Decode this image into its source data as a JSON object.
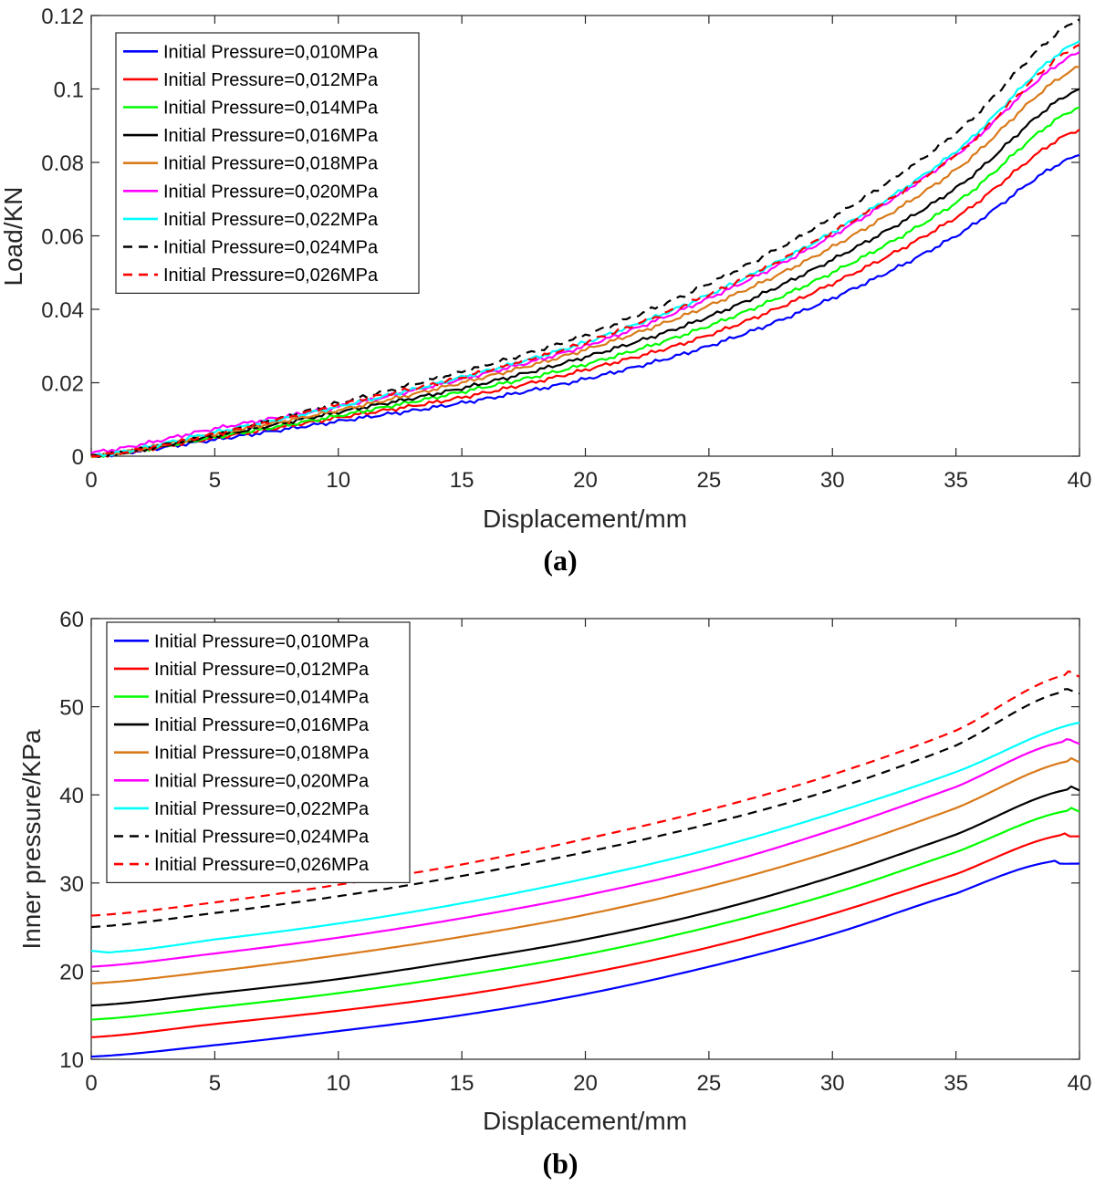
{
  "chart_data": [
    {
      "panel_label": "(a)",
      "type": "line",
      "xlabel": "Displacement/mm",
      "ylabel": "Load/KN",
      "xlim": [
        0,
        40
      ],
      "ylim": [
        0,
        0.12
      ],
      "xticks": [
        "0",
        "5",
        "10",
        "15",
        "20",
        "25",
        "30",
        "35",
        "40"
      ],
      "xtick_values": [
        0,
        5,
        10,
        15,
        20,
        25,
        30,
        35,
        40
      ],
      "yticks": [
        "0",
        "0.02",
        "0.04",
        "0.06",
        "0.08",
        "0.1",
        "0.12"
      ],
      "ytick_values": [
        0,
        0.02,
        0.04,
        0.06,
        0.08,
        0.1,
        0.12
      ],
      "legend_position": "top-left",
      "x": [
        0,
        5,
        10,
        15,
        20,
        25,
        30,
        35,
        40
      ],
      "series": [
        {
          "name": "Initial Pressure=0,010MPa",
          "color": "#0000ff",
          "dash": "solid",
          "values": [
            0.0,
            0.0045,
            0.0095,
            0.0145,
            0.021,
            0.03,
            0.043,
            0.06,
            0.082
          ]
        },
        {
          "name": "Initial Pressure=0,012MPa",
          "color": "#ff0000",
          "dash": "solid",
          "values": [
            0.0,
            0.005,
            0.0105,
            0.016,
            0.0235,
            0.033,
            0.047,
            0.065,
            0.089
          ]
        },
        {
          "name": "Initial Pressure=0,014MPa",
          "color": "#00ff00",
          "dash": "solid",
          "values": [
            0.0,
            0.0052,
            0.011,
            0.0175,
            0.025,
            0.0355,
            0.05,
            0.069,
            0.095
          ]
        },
        {
          "name": "Initial Pressure=0,016MPa",
          "color": "#000000",
          "dash": "solid",
          "values": [
            0.0,
            0.0055,
            0.012,
            0.0185,
            0.027,
            0.038,
            0.0535,
            0.073,
            0.1
          ]
        },
        {
          "name": "Initial Pressure=0,018MPa",
          "color": "#d97a1a",
          "dash": "solid",
          "values": [
            0.0,
            0.006,
            0.0125,
            0.02,
            0.029,
            0.041,
            0.057,
            0.078,
            0.106
          ]
        },
        {
          "name": "Initial Pressure=0,020MPa",
          "color": "#ff00ff",
          "dash": "solid",
          "values": [
            0.001,
            0.0075,
            0.0135,
            0.021,
            0.03,
            0.043,
            0.06,
            0.082,
            0.11
          ]
        },
        {
          "name": "Initial Pressure=0,022MPa",
          "color": "#00ffff",
          "dash": "solid",
          "values": [
            0.0,
            0.0065,
            0.0135,
            0.0215,
            0.031,
            0.044,
            0.061,
            0.083,
            0.113
          ]
        },
        {
          "name": "Initial Pressure=0,024MPa",
          "color": "#000000",
          "dash": "dashed",
          "values": [
            0.0,
            0.006,
            0.0145,
            0.023,
            0.033,
            0.047,
            0.065,
            0.088,
            0.119
          ]
        },
        {
          "name": "Initial Pressure=0,026MPa",
          "color": "#ff0000",
          "dash": "dashed",
          "values": [
            0.0,
            0.006,
            0.014,
            0.0215,
            0.031,
            0.044,
            0.061,
            0.082,
            0.112
          ]
        }
      ]
    },
    {
      "panel_label": "(b)",
      "type": "line",
      "xlabel": "Displacement/mm",
      "ylabel": "Inner pressure/KPa",
      "xlim": [
        0,
        40
      ],
      "ylim": [
        10,
        60
      ],
      "xticks": [
        "0",
        "5",
        "10",
        "15",
        "20",
        "25",
        "30",
        "35",
        "40"
      ],
      "xtick_values": [
        0,
        5,
        10,
        15,
        20,
        25,
        30,
        35,
        40
      ],
      "yticks": [
        "10",
        "20",
        "30",
        "40",
        "50",
        "60"
      ],
      "ytick_values": [
        10,
        20,
        30,
        40,
        50,
        60
      ],
      "legend_position": "top-left",
      "series": [
        {
          "name": "Initial Pressure=0,010MPa",
          "color": "#0000ff",
          "dash": "solid",
          "x": [
            0,
            5,
            10,
            15,
            20,
            25,
            30,
            35,
            38.8,
            39.2,
            40
          ],
          "values": [
            10.3,
            11.6,
            13.2,
            15.0,
            17.4,
            20.5,
            24.2,
            28.8,
            32.4,
            32.2,
            32.2
          ]
        },
        {
          "name": "Initial Pressure=0,012MPa",
          "color": "#ff0000",
          "dash": "solid",
          "x": [
            0,
            5,
            10,
            15,
            20,
            25,
            30,
            35,
            39.2,
            39.6,
            40
          ],
          "values": [
            12.5,
            14.0,
            15.5,
            17.3,
            19.7,
            22.7,
            26.5,
            31.0,
            35.4,
            35.3,
            35.3
          ]
        },
        {
          "name": "Initial Pressure=0,014MPa",
          "color": "#00ff00",
          "dash": "solid",
          "x": [
            0,
            5,
            10,
            15,
            20,
            25,
            30,
            35,
            39.5,
            40
          ],
          "values": [
            14.5,
            15.9,
            17.5,
            19.5,
            21.9,
            25.0,
            28.8,
            33.5,
            38.2,
            38.1
          ]
        },
        {
          "name": "Initial Pressure=0,016MPa",
          "color": "#000000",
          "dash": "solid",
          "x": [
            0,
            5,
            10,
            15,
            20,
            25,
            30,
            35,
            39.5,
            40
          ],
          "values": [
            16.1,
            17.5,
            19.1,
            21.2,
            23.6,
            26.7,
            30.7,
            35.5,
            40.6,
            40.5
          ]
        },
        {
          "name": "Initial Pressure=0,018MPa",
          "color": "#d97a1a",
          "dash": "solid",
          "x": [
            0,
            5,
            10,
            15,
            20,
            25,
            30,
            35,
            39.5,
            40
          ],
          "values": [
            18.6,
            20.0,
            21.8,
            23.9,
            26.4,
            29.6,
            33.6,
            38.5,
            43.8,
            43.7
          ]
        },
        {
          "name": "Initial Pressure=0,020MPa",
          "color": "#ff00ff",
          "dash": "solid",
          "x": [
            0,
            5,
            10,
            15,
            20,
            25,
            30,
            35,
            39.3,
            40
          ],
          "values": [
            20.5,
            22.0,
            23.8,
            26.0,
            28.6,
            31.8,
            36.0,
            40.9,
            46.0,
            45.8
          ]
        },
        {
          "name": "Initial Pressure=0,022MPa",
          "color": "#00ffff",
          "dash": "solid",
          "x": [
            0,
            1,
            5,
            10,
            15,
            20,
            25,
            30,
            35,
            40
          ],
          "values": [
            22.3,
            22.2,
            23.6,
            25.4,
            27.7,
            30.5,
            33.8,
            37.9,
            42.6,
            48.2
          ]
        },
        {
          "name": "Initial Pressure=0,024MPa",
          "color": "#000000",
          "dash": "dashed",
          "x": [
            0,
            5,
            10,
            15,
            20,
            25,
            30,
            35,
            39.2,
            40
          ],
          "values": [
            25.0,
            26.6,
            28.5,
            30.8,
            33.5,
            36.7,
            40.6,
            45.6,
            51.6,
            51.5
          ]
        },
        {
          "name": "Initial Pressure=0,026MPa",
          "color": "#ff0000",
          "dash": "dashed",
          "x": [
            0,
            5,
            10,
            15,
            20,
            25,
            30,
            35,
            39.4,
            40
          ],
          "values": [
            26.3,
            27.8,
            29.8,
            32.1,
            35.0,
            38.3,
            42.3,
            47.3,
            53.6,
            53.4
          ]
        }
      ]
    }
  ]
}
